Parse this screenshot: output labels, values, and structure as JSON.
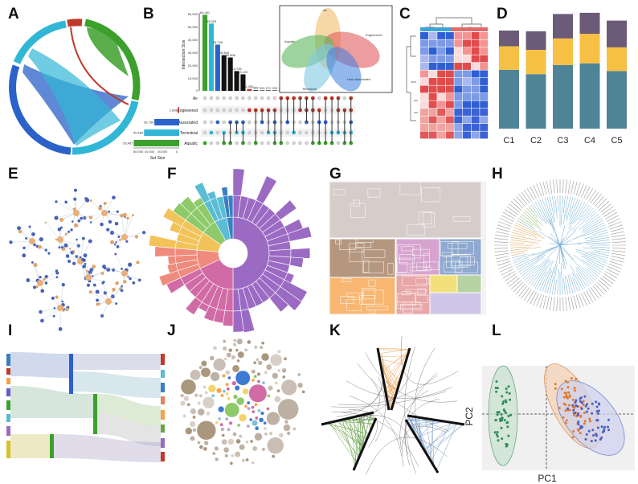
{
  "panels": [
    "A",
    "B",
    "C",
    "D",
    "E",
    "F",
    "G",
    "H",
    "I",
    "J",
    "K",
    "L"
  ],
  "chart_data": [
    {
      "panel": "B",
      "type": "bar",
      "ylabel": "Intersection Size",
      "xlabel": "Set Size",
      "y_ticks": [
        "60,000",
        "50,000",
        "40,000",
        "30,000",
        "20,000",
        "10,000",
        "0"
      ],
      "x_ticks": [
        "60,000",
        "40,000",
        "20,000",
        "0"
      ],
      "intersection_values": [
        60461,
        53509,
        36758,
        28366,
        26506,
        15706,
        13120,
        1450,
        488,
        330,
        272,
        200,
        163,
        149,
        4,
        3,
        2,
        1,
        1,
        1,
        1,
        1,
        1,
        1
      ],
      "intersection_labels": [
        "60,461",
        "53,509",
        "36,758",
        "28,366",
        "26,506",
        "15,706",
        "13,120",
        "1,450",
        "488",
        "330",
        "272",
        "200",
        "163",
        "149",
        "4",
        "3",
        "2",
        "1",
        "1",
        "1",
        "1",
        "1",
        "1",
        "1"
      ],
      "sets": [
        {
          "name": "Air",
          "size": 1,
          "size_label": "",
          "color": "#c0392b"
        },
        {
          "name": "Engineered",
          "size": 1638,
          "size_label": "1,638",
          "color": "#c0392b"
        },
        {
          "name": "Host-Associated",
          "size": 35789,
          "size_label": "35,789",
          "color": "#2a62c9"
        },
        {
          "name": "Terrestrial",
          "size": 50669,
          "size_label": "50,669",
          "color": "#32b6d6"
        },
        {
          "name": "Aquatic",
          "size": 65467,
          "size_label": "65,467",
          "color": "#3ca02c"
        }
      ],
      "venn_labels": [
        "Air",
        "Engineered",
        "Aquatic",
        "Terrestrial",
        "Host-Associated"
      ]
    },
    {
      "panel": "D",
      "type": "bar",
      "categories": [
        "C1",
        "C2",
        "C3",
        "C4",
        "C5"
      ],
      "series": [
        {
          "values": [
            0.6,
            0.56,
            0.6,
            0.62,
            0.56
          ],
          "color": "#4f8497"
        },
        {
          "values": [
            0.24,
            0.25,
            0.25,
            0.28,
            0.23
          ],
          "color": "#f6c044"
        },
        {
          "values": [
            0.16,
            0.19,
            0.23,
            0.2,
            0.26
          ],
          "color": "#6b5a78"
        }
      ]
    },
    {
      "panel": "L",
      "type": "scatter",
      "xlabel": "PC1",
      "ylabel": "PC2",
      "groups": [
        {
          "color": "#2e8b57",
          "count": 45
        },
        {
          "color": "#e07a2f",
          "count": 55
        },
        {
          "color": "#4a5fc1",
          "count": 60
        }
      ]
    }
  ],
  "colors": {
    "green": "#3ca02c",
    "blue": "#2a62c9",
    "cyan": "#32b6d6",
    "red": "#c0392b",
    "orange": "#f2a24b",
    "purple": "#9b6bc4"
  }
}
